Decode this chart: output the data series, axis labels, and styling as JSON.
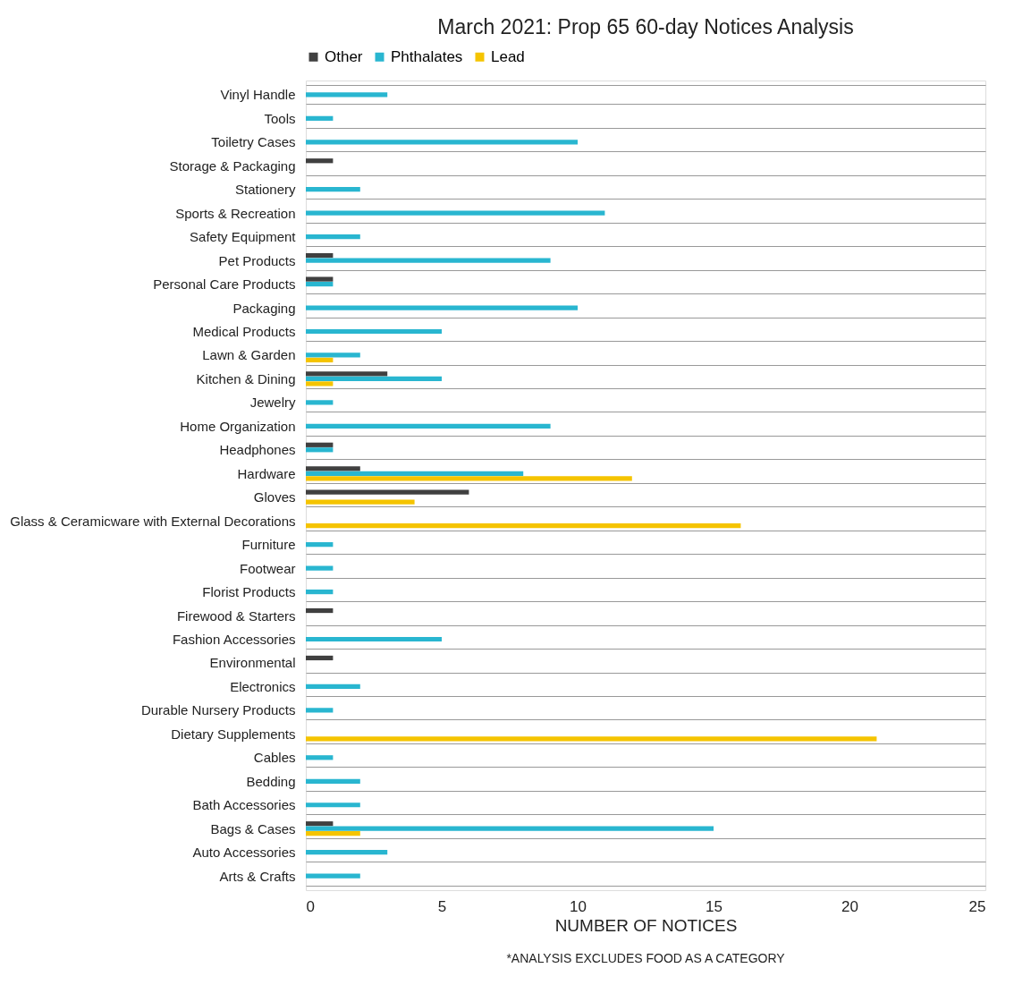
{
  "chart_data": {
    "type": "bar",
    "orientation": "horizontal",
    "title": "March 2021: Prop 65 60-day Notices Analysis",
    "xlabel": "NUMBER OF NOTICES",
    "annotations": [
      "*ANALYSIS EXCLUDES FOOD AS A CATEGORY"
    ],
    "categories": [
      "Vinyl Handle",
      "Tools",
      "Toiletry Cases",
      "Storage & Packaging",
      "Stationery",
      "Sports & Recreation",
      "Safety Equipment",
      "Pet Products",
      "Personal Care Products",
      "Packaging",
      "Medical Products",
      "Lawn & Garden",
      "Kitchen & Dining",
      "Jewelry",
      "Home Organization",
      "Headphones",
      "Hardware",
      "Gloves",
      "Glass & Ceramicware with External Decorations",
      "Furniture",
      "Footwear",
      "Florist Products",
      "Firewood & Starters",
      "Fashion Accessories",
      "Environmental",
      "Electronics",
      "Durable Nursery Products",
      "Dietary Supplements",
      "Cables",
      "Bedding",
      "Bath Accessories",
      "Bags & Cases",
      "Auto Accessories",
      "Arts & Crafts"
    ],
    "series": [
      {
        "name": "Other",
        "color": "#404040",
        "values": [
          null,
          null,
          null,
          1,
          null,
          null,
          null,
          1,
          1,
          null,
          null,
          null,
          3,
          null,
          null,
          1,
          2,
          6,
          null,
          null,
          null,
          null,
          1,
          null,
          1,
          null,
          null,
          null,
          null,
          null,
          null,
          1,
          null,
          null
        ]
      },
      {
        "name": "Phthalates",
        "color": "#29b6d0",
        "values": [
          3,
          1,
          10,
          null,
          2,
          11,
          2,
          9,
          1,
          10,
          5,
          2,
          5,
          1,
          9,
          1,
          8,
          null,
          null,
          1,
          1,
          1,
          null,
          5,
          null,
          2,
          1,
          null,
          1,
          2,
          2,
          15,
          3,
          2
        ]
      },
      {
        "name": "Lead",
        "color": "#f5c400",
        "values": [
          null,
          null,
          null,
          null,
          null,
          null,
          null,
          null,
          null,
          null,
          null,
          1,
          1,
          null,
          null,
          null,
          12,
          4,
          16,
          null,
          null,
          null,
          null,
          null,
          null,
          null,
          null,
          21,
          null,
          null,
          null,
          2,
          null,
          null
        ]
      }
    ],
    "xlim": [
      0,
      25
    ],
    "xticks": [
      0,
      5,
      10,
      15,
      20,
      25
    ],
    "grid": "y",
    "legend": "top"
  }
}
